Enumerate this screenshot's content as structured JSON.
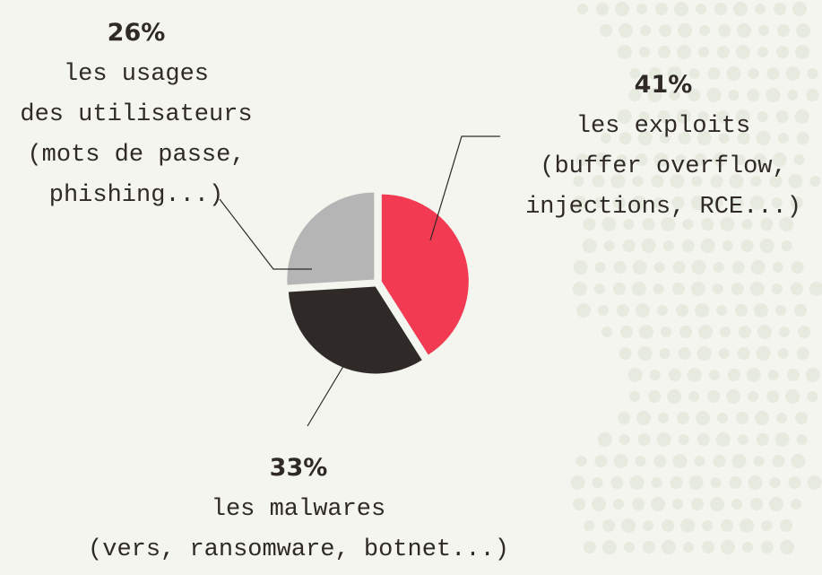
{
  "chart_data": {
    "type": "pie",
    "values": [
      41,
      33,
      26
    ],
    "value_labels": [
      "41%",
      "33%",
      "26%"
    ],
    "label_lines": [
      [
        "les exploits",
        "(buffer overflow,",
        "injections, RCE...)"
      ],
      [
        "les malwares",
        "(vers, ransomware, botnet...)"
      ],
      [
        "les usages",
        "des utilisateurs",
        "(mots de passe,",
        "phishing...)"
      ]
    ],
    "colors": [
      "#f23a52",
      "#2f2a27",
      "#b5b5b5"
    ]
  }
}
